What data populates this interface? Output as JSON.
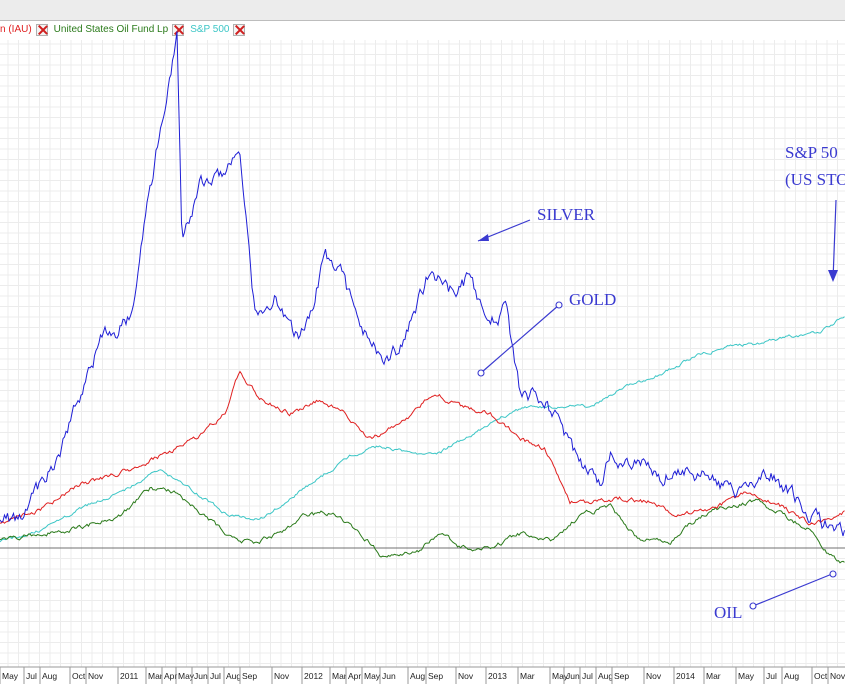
{
  "legend": [
    {
      "label": "n (IAU)",
      "color": "#e02020"
    },
    {
      "label": "United States Oil Fund Lp",
      "color": "#2a7a1a"
    },
    {
      "label": "S&P 500",
      "color": "#3cc6c6"
    }
  ],
  "chart_data": {
    "type": "line",
    "title": "",
    "xlabel": "",
    "ylabel": "",
    "grid": true,
    "x_ticks": [
      "May",
      "Jul",
      "Aug",
      "Oct",
      "Nov",
      "2011",
      "Mar",
      "Apr",
      "May",
      "Jun",
      "Jul",
      "Aug",
      "Sep",
      "Nov",
      "2012",
      "Mar",
      "Apr",
      "May",
      "Jun",
      "Aug",
      "Sep",
      "Nov",
      "2013",
      "Mar",
      "May",
      "Jun",
      "Jul",
      "Aug",
      "Sep",
      "Nov",
      "2014",
      "Mar",
      "May",
      "Jul",
      "Aug",
      "Oct",
      "Nov"
    ],
    "x_range": [
      "2010-04",
      "2014-11"
    ],
    "series": [
      {
        "name": "SILVER",
        "color": "#1f1fd6",
        "values": [
          [
            0,
            9
          ],
          [
            20,
            8
          ],
          [
            60,
            27
          ],
          [
            100,
            58
          ],
          [
            130,
            65
          ],
          [
            160,
            118
          ],
          [
            177,
            145
          ],
          [
            182,
            86
          ],
          [
            200,
            103
          ],
          [
            225,
            107
          ],
          [
            240,
            111
          ],
          [
            255,
            66
          ],
          [
            275,
            72
          ],
          [
            300,
            58
          ],
          [
            325,
            82
          ],
          [
            340,
            78
          ],
          [
            360,
            62
          ],
          [
            385,
            54
          ],
          [
            400,
            56
          ],
          [
            430,
            79
          ],
          [
            455,
            72
          ],
          [
            470,
            77
          ],
          [
            490,
            64
          ],
          [
            505,
            68
          ],
          [
            520,
            44
          ],
          [
            540,
            43
          ],
          [
            560,
            36
          ],
          [
            580,
            24
          ],
          [
            600,
            17
          ],
          [
            610,
            25
          ],
          [
            640,
            26
          ],
          [
            660,
            21
          ],
          [
            700,
            21
          ],
          [
            740,
            16
          ],
          [
            770,
            21
          ],
          [
            800,
            13
          ],
          [
            820,
            7
          ],
          [
            845,
            4
          ]
        ]
      },
      {
        "name": "GOLD",
        "color": "#e02020",
        "values": [
          [
            0,
            7
          ],
          [
            40,
            11
          ],
          [
            80,
            18
          ],
          [
            120,
            21
          ],
          [
            160,
            26
          ],
          [
            200,
            32
          ],
          [
            225,
            38
          ],
          [
            240,
            50
          ],
          [
            260,
            42
          ],
          [
            290,
            38
          ],
          [
            320,
            42
          ],
          [
            345,
            38
          ],
          [
            370,
            31
          ],
          [
            400,
            35
          ],
          [
            435,
            44
          ],
          [
            460,
            40
          ],
          [
            490,
            38
          ],
          [
            520,
            31
          ],
          [
            545,
            28
          ],
          [
            570,
            13
          ],
          [
            590,
            13
          ],
          [
            620,
            14
          ],
          [
            650,
            13
          ],
          [
            680,
            9
          ],
          [
            720,
            12
          ],
          [
            750,
            16
          ],
          [
            780,
            12
          ],
          [
            810,
            7
          ],
          [
            830,
            8
          ],
          [
            845,
            10
          ]
        ]
      },
      {
        "name": "S&P 500",
        "color": "#3cc6c6",
        "values": [
          [
            0,
            2
          ],
          [
            40,
            5
          ],
          [
            80,
            11
          ],
          [
            120,
            16
          ],
          [
            160,
            22
          ],
          [
            180,
            19
          ],
          [
            200,
            15
          ],
          [
            230,
            9
          ],
          [
            260,
            8
          ],
          [
            290,
            14
          ],
          [
            320,
            20
          ],
          [
            350,
            26
          ],
          [
            380,
            29
          ],
          [
            410,
            27
          ],
          [
            440,
            27
          ],
          [
            470,
            32
          ],
          [
            500,
            37
          ],
          [
            530,
            40
          ],
          [
            560,
            40
          ],
          [
            590,
            40
          ],
          [
            620,
            45
          ],
          [
            650,
            48
          ],
          [
            680,
            52
          ],
          [
            700,
            55
          ],
          [
            730,
            57
          ],
          [
            760,
            58
          ],
          [
            790,
            60
          ],
          [
            820,
            61
          ],
          [
            845,
            66
          ]
        ]
      },
      {
        "name": "OIL",
        "color": "#2a7a1a",
        "values": [
          [
            0,
            2
          ],
          [
            40,
            4
          ],
          [
            80,
            6
          ],
          [
            120,
            9
          ],
          [
            150,
            17
          ],
          [
            175,
            16
          ],
          [
            200,
            10
          ],
          [
            230,
            3
          ],
          [
            255,
            1
          ],
          [
            280,
            4
          ],
          [
            300,
            9
          ],
          [
            330,
            10
          ],
          [
            360,
            4
          ],
          [
            385,
            -3
          ],
          [
            400,
            -2
          ],
          [
            420,
            -1
          ],
          [
            440,
            5
          ],
          [
            460,
            0
          ],
          [
            490,
            0
          ],
          [
            520,
            4
          ],
          [
            550,
            2
          ],
          [
            580,
            9
          ],
          [
            610,
            12
          ],
          [
            640,
            2
          ],
          [
            670,
            2
          ],
          [
            700,
            9
          ],
          [
            730,
            12
          ],
          [
            760,
            13
          ],
          [
            790,
            8
          ],
          [
            815,
            4
          ],
          [
            830,
            -2
          ],
          [
            845,
            -5
          ]
        ]
      }
    ],
    "annotations": [
      {
        "text": "SILVER"
      },
      {
        "text": "GOLD"
      },
      {
        "text": "S&P 50"
      },
      {
        "text": "(US STO"
      },
      {
        "text": "OIL"
      }
    ]
  }
}
